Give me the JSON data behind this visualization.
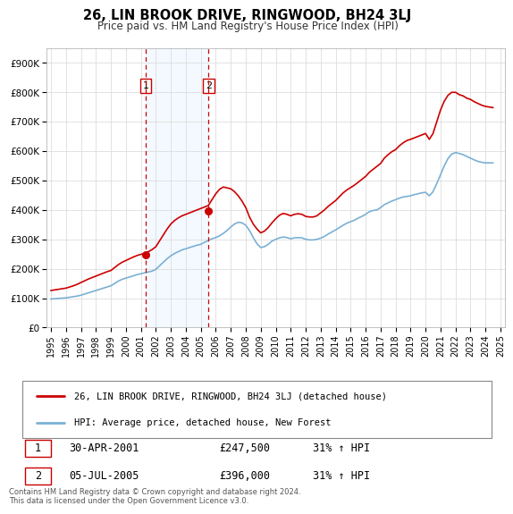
{
  "title": "26, LIN BROOK DRIVE, RINGWOOD, BH24 3LJ",
  "subtitle": "Price paid vs. HM Land Registry's House Price Index (HPI)",
  "legend_line1": "26, LIN BROOK DRIVE, RINGWOOD, BH24 3LJ (detached house)",
  "legend_line2": "HPI: Average price, detached house, New Forest",
  "transaction1_date": "30-APR-2001",
  "transaction1_price": "£247,500",
  "transaction1_hpi": "31% ↑ HPI",
  "transaction2_date": "05-JUL-2005",
  "transaction2_price": "£396,000",
  "transaction2_hpi": "31% ↑ HPI",
  "footnote": "Contains HM Land Registry data © Crown copyright and database right 2024.\nThis data is licensed under the Open Government Licence v3.0.",
  "price_color": "#cc0000",
  "hpi_color": "#7ab0d4",
  "shading_color": "#ddeeff",
  "vline_color": "#cc0000",
  "point1_x": 2001.33,
  "point1_y": 247500,
  "point2_x": 2005.52,
  "point2_y": 396000,
  "xlim_left": 1994.7,
  "xlim_right": 2025.3,
  "ylim_bottom": 0,
  "ylim_top": 950000,
  "yticks": [
    0,
    100000,
    200000,
    300000,
    400000,
    500000,
    600000,
    700000,
    800000,
    900000
  ],
  "ytick_labels": [
    "£0",
    "£100K",
    "£200K",
    "£300K",
    "£400K",
    "£500K",
    "£600K",
    "£700K",
    "£800K",
    "£900K"
  ],
  "xticks": [
    1995,
    1996,
    1997,
    1998,
    1999,
    2000,
    2001,
    2002,
    2003,
    2004,
    2005,
    2006,
    2007,
    2008,
    2009,
    2010,
    2011,
    2012,
    2013,
    2014,
    2015,
    2016,
    2017,
    2018,
    2019,
    2020,
    2021,
    2022,
    2023,
    2024,
    2025
  ],
  "hpi_data_x": [
    1995.0,
    1995.25,
    1995.5,
    1995.75,
    1996.0,
    1996.25,
    1996.5,
    1996.75,
    1997.0,
    1997.25,
    1997.5,
    1997.75,
    1998.0,
    1998.25,
    1998.5,
    1998.75,
    1999.0,
    1999.25,
    1999.5,
    1999.75,
    2000.0,
    2000.25,
    2000.5,
    2000.75,
    2001.0,
    2001.25,
    2001.5,
    2001.75,
    2002.0,
    2002.25,
    2002.5,
    2002.75,
    2003.0,
    2003.25,
    2003.5,
    2003.75,
    2004.0,
    2004.25,
    2004.5,
    2004.75,
    2005.0,
    2005.25,
    2005.5,
    2005.75,
    2006.0,
    2006.25,
    2006.5,
    2006.75,
    2007.0,
    2007.25,
    2007.5,
    2007.75,
    2008.0,
    2008.25,
    2008.5,
    2008.75,
    2009.0,
    2009.25,
    2009.5,
    2009.75,
    2010.0,
    2010.25,
    2010.5,
    2010.75,
    2011.0,
    2011.25,
    2011.5,
    2011.75,
    2012.0,
    2012.25,
    2012.5,
    2012.75,
    2013.0,
    2013.25,
    2013.5,
    2013.75,
    2014.0,
    2014.25,
    2014.5,
    2014.75,
    2015.0,
    2015.25,
    2015.5,
    2015.75,
    2016.0,
    2016.25,
    2016.5,
    2016.75,
    2017.0,
    2017.25,
    2017.5,
    2017.75,
    2018.0,
    2018.25,
    2018.5,
    2018.75,
    2019.0,
    2019.25,
    2019.5,
    2019.75,
    2020.0,
    2020.25,
    2020.5,
    2020.75,
    2021.0,
    2021.25,
    2021.5,
    2021.75,
    2022.0,
    2022.25,
    2022.5,
    2022.75,
    2023.0,
    2023.25,
    2023.5,
    2023.75,
    2024.0,
    2024.25,
    2024.5
  ],
  "hpi_data_y": [
    97000,
    98000,
    99000,
    100000,
    101000,
    103000,
    105000,
    107000,
    110000,
    114000,
    118000,
    122000,
    126000,
    130000,
    134000,
    138000,
    142000,
    150000,
    158000,
    164000,
    168000,
    172000,
    176000,
    180000,
    183000,
    186000,
    189000,
    192000,
    198000,
    210000,
    222000,
    234000,
    244000,
    252000,
    258000,
    264000,
    268000,
    272000,
    276000,
    280000,
    283000,
    290000,
    296000,
    302000,
    306000,
    312000,
    320000,
    330000,
    342000,
    352000,
    358000,
    356000,
    348000,
    330000,
    306000,
    285000,
    272000,
    275000,
    283000,
    294000,
    300000,
    305000,
    308000,
    306000,
    302000,
    305000,
    306000,
    305000,
    300000,
    298000,
    298000,
    300000,
    304000,
    310000,
    318000,
    325000,
    332000,
    340000,
    348000,
    355000,
    360000,
    365000,
    372000,
    378000,
    385000,
    394000,
    398000,
    400000,
    408000,
    418000,
    424000,
    430000,
    435000,
    440000,
    444000,
    446000,
    448000,
    452000,
    455000,
    458000,
    460000,
    448000,
    462000,
    490000,
    520000,
    550000,
    575000,
    590000,
    595000,
    592000,
    588000,
    582000,
    576000,
    570000,
    565000,
    562000,
    560000,
    560000,
    560000
  ],
  "price_data_x": [
    1995.0,
    1995.25,
    1995.5,
    1995.75,
    1996.0,
    1996.25,
    1996.5,
    1996.75,
    1997.0,
    1997.25,
    1997.5,
    1997.75,
    1998.0,
    1998.25,
    1998.5,
    1998.75,
    1999.0,
    1999.25,
    1999.5,
    1999.75,
    2000.0,
    2000.25,
    2000.5,
    2000.75,
    2001.0,
    2001.25,
    2001.5,
    2001.75,
    2002.0,
    2002.25,
    2002.5,
    2002.75,
    2003.0,
    2003.25,
    2003.5,
    2003.75,
    2004.0,
    2004.25,
    2004.5,
    2004.75,
    2005.0,
    2005.25,
    2005.5,
    2005.75,
    2006.0,
    2006.25,
    2006.5,
    2006.75,
    2007.0,
    2007.25,
    2007.5,
    2007.75,
    2008.0,
    2008.25,
    2008.5,
    2008.75,
    2009.0,
    2009.25,
    2009.5,
    2009.75,
    2010.0,
    2010.25,
    2010.5,
    2010.75,
    2011.0,
    2011.25,
    2011.5,
    2011.75,
    2012.0,
    2012.25,
    2012.5,
    2012.75,
    2013.0,
    2013.25,
    2013.5,
    2013.75,
    2014.0,
    2014.25,
    2014.5,
    2014.75,
    2015.0,
    2015.25,
    2015.5,
    2015.75,
    2016.0,
    2016.25,
    2016.5,
    2016.75,
    2017.0,
    2017.25,
    2017.5,
    2017.75,
    2018.0,
    2018.25,
    2018.5,
    2018.75,
    2019.0,
    2019.25,
    2019.5,
    2019.75,
    2020.0,
    2020.25,
    2020.5,
    2020.75,
    2021.0,
    2021.25,
    2021.5,
    2021.75,
    2022.0,
    2022.25,
    2022.5,
    2022.75,
    2023.0,
    2023.25,
    2023.5,
    2023.75,
    2024.0,
    2024.25,
    2024.5
  ],
  "price_data_y": [
    126000,
    128000,
    130000,
    132000,
    134000,
    138000,
    142000,
    147000,
    153000,
    159000,
    165000,
    170000,
    175000,
    180000,
    185000,
    190000,
    194000,
    204000,
    214000,
    222000,
    228000,
    234000,
    240000,
    245000,
    249000,
    252000,
    258000,
    265000,
    275000,
    295000,
    315000,
    335000,
    352000,
    364000,
    373000,
    380000,
    385000,
    390000,
    395000,
    400000,
    405000,
    410000,
    415000,
    435000,
    455000,
    470000,
    478000,
    475000,
    472000,
    462000,
    448000,
    430000,
    408000,
    376000,
    352000,
    335000,
    322000,
    328000,
    340000,
    356000,
    370000,
    382000,
    388000,
    385000,
    380000,
    385000,
    387000,
    385000,
    378000,
    376000,
    376000,
    380000,
    390000,
    400000,
    412000,
    422000,
    432000,
    445000,
    458000,
    468000,
    476000,
    484000,
    494000,
    504000,
    514000,
    528000,
    538000,
    548000,
    558000,
    576000,
    588000,
    598000,
    605000,
    618000,
    628000,
    636000,
    640000,
    645000,
    650000,
    655000,
    660000,
    640000,
    660000,
    700000,
    740000,
    770000,
    790000,
    800000,
    800000,
    792000,
    788000,
    780000,
    776000,
    768000,
    762000,
    756000,
    752000,
    750000,
    748000
  ]
}
